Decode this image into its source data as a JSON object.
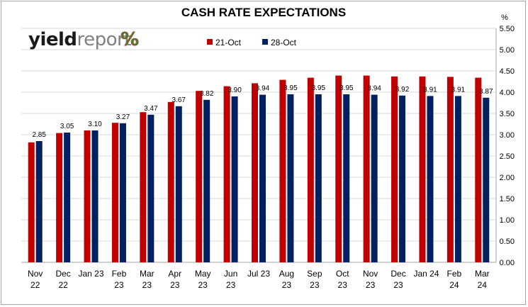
{
  "chart_data": {
    "type": "bar",
    "title": "CASH RATE EXPECTATIONS",
    "y_unit": "%",
    "categories": [
      [
        "Nov",
        "22"
      ],
      [
        "Dec",
        "22"
      ],
      [
        "Jan 23"
      ],
      [
        "Feb",
        "23"
      ],
      [
        "Mar",
        "23"
      ],
      [
        "Apr",
        "23"
      ],
      [
        "May",
        "23"
      ],
      [
        "Jun",
        "23"
      ],
      [
        "Jul 23"
      ],
      [
        "Aug",
        "23"
      ],
      [
        "Sep",
        "23"
      ],
      [
        "Oct",
        "23"
      ],
      [
        "Nov",
        "23"
      ],
      [
        "Dec",
        "23"
      ],
      [
        "Jan 24"
      ],
      [
        "Feb",
        "24"
      ],
      [
        "Mar",
        "24"
      ]
    ],
    "series": [
      {
        "name": "21-Oct",
        "color": "#c00000",
        "values": [
          2.82,
          3.04,
          3.1,
          3.28,
          3.53,
          3.77,
          4.03,
          4.14,
          4.21,
          4.29,
          4.34,
          4.39,
          4.39,
          4.37,
          4.37,
          4.36,
          4.34
        ]
      },
      {
        "name": "28-Oct",
        "color": "#002060",
        "values": [
          2.85,
          3.05,
          3.1,
          3.27,
          3.47,
          3.67,
          3.82,
          3.9,
          3.94,
          3.95,
          3.95,
          3.95,
          3.94,
          3.92,
          3.91,
          3.91,
          3.87
        ]
      }
    ],
    "data_labels": [
      "2.85",
      "3.05",
      "3.10",
      "3.27",
      "3.47",
      "3.67",
      "3.82",
      "3.90",
      "3.94",
      "3.95",
      "3.95",
      "3.95",
      "3.94",
      "3.92",
      "3.91",
      "3.91",
      "3.87"
    ],
    "y_ticks": [
      "0.00",
      "0.50",
      "1.00",
      "1.50",
      "2.00",
      "2.50",
      "3.00",
      "3.50",
      "4.00",
      "4.50",
      "5.00",
      "5.50"
    ],
    "ylim": [
      0,
      5.5
    ],
    "y_axis_side": "right",
    "grid": true,
    "legend_position": "top-center"
  },
  "logo": {
    "text_dark": "yield",
    "text_light": "report",
    "symbol": "%",
    "color_dark": "#1a1a1a",
    "color_light": "#808080",
    "symbol_green": "#3a8a2f",
    "symbol_red": "#c0282d"
  }
}
